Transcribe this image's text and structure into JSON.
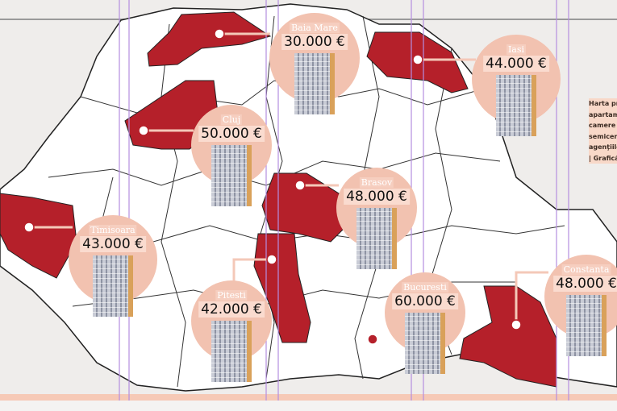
{
  "currency": "€",
  "colors": {
    "highlight_county": "#b5202a",
    "bubble": "#f2c2b0",
    "guide_line": "#b58ee0",
    "map_fill": "#ffffff",
    "map_border": "#222222"
  },
  "cities": [
    {
      "name": "Baia Mare",
      "price": "30.000 €"
    },
    {
      "name": "Iasi",
      "price": "44.000 €"
    },
    {
      "name": "Cluj",
      "price": "50.000 €"
    },
    {
      "name": "Brasov",
      "price": "48.000 €"
    },
    {
      "name": "Timisoara",
      "price": "43.000 €"
    },
    {
      "name": "Pitesti",
      "price": "42.000 €"
    },
    {
      "name": "Bucuresti",
      "price": "60.000 €"
    },
    {
      "name": "Constanta",
      "price": "48.000 €"
    }
  ],
  "side_note": {
    "lines": [
      "Harta pre",
      "apartame",
      "camere si",
      "semicent",
      "agenţiilor",
      "| Grafică:"
    ]
  }
}
